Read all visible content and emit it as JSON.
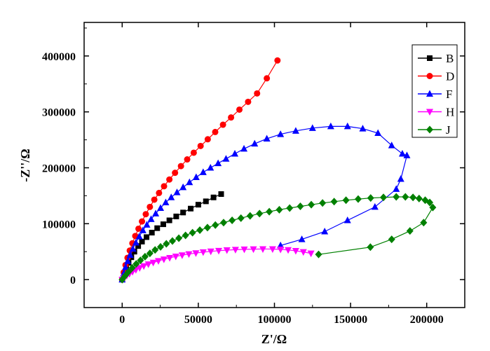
{
  "chart_data": {
    "type": "scatter",
    "title": "",
    "xlabel": "Z'/Ω",
    "ylabel": "-Z''/Ω",
    "xlim": [
      -25000,
      225000
    ],
    "ylim": [
      -50000,
      460000
    ],
    "xticks": [
      0,
      50000,
      100000,
      150000,
      200000
    ],
    "yticks": [
      0,
      100000,
      200000,
      300000,
      400000
    ],
    "xtick_labels": [
      "0",
      "50000",
      "100000",
      "150000",
      "200000"
    ],
    "ytick_labels": [
      "0",
      "100000",
      "200000",
      "300000",
      "400000"
    ],
    "grid": false,
    "legend_position": "top-right",
    "series": [
      {
        "name": "B",
        "color": "#000000",
        "marker": "square",
        "x": [
          0,
          1200,
          2600,
          4200,
          6000,
          8000,
          10500,
          13000,
          16000,
          19500,
          23000,
          27000,
          31000,
          35500,
          40000,
          45000,
          50000,
          55000,
          60000,
          65000
        ],
        "y": [
          0,
          10000,
          20000,
          30000,
          40000,
          50000,
          60000,
          68000,
          76000,
          84000,
          92000,
          99000,
          106000,
          113000,
          120000,
          127000,
          134000,
          140000,
          147000,
          153000
        ]
      },
      {
        "name": "D",
        "color": "#ff0000",
        "marker": "circle",
        "x": [
          0,
          1000,
          2200,
          3500,
          5000,
          6700,
          8600,
          10700,
          13000,
          15500,
          18200,
          21100,
          24200,
          27500,
          31000,
          34700,
          38600,
          42700,
          47000,
          51500,
          56200,
          61100,
          66200,
          71500,
          77000,
          82700,
          88600,
          95000,
          102000
        ],
        "y": [
          0,
          13000,
          26000,
          39000,
          52000,
          65000,
          78000,
          91000,
          104000,
          117000,
          130000,
          143000,
          155000,
          167000,
          179000,
          191000,
          203000,
          215000,
          227000,
          239000,
          251000,
          264000,
          277000,
          290000,
          304000,
          318000,
          333000,
          360000,
          392000
        ]
      },
      {
        "name": "F",
        "color": "#0000ff",
        "marker": "triangle-up",
        "x": [
          0,
          1000,
          2200,
          3600,
          5200,
          7000,
          9000,
          11200,
          13600,
          16200,
          19000,
          22000,
          25200,
          28600,
          32200,
          36000,
          40000,
          44200,
          48600,
          53200,
          58000,
          63000,
          68200,
          74000,
          80000,
          87000,
          95000,
          104000,
          114000,
          125000,
          137000,
          148000,
          158000,
          168000,
          177000,
          184000,
          187000,
          183000,
          180000,
          166000,
          148000,
          133000,
          118000,
          104000
        ],
        "y": [
          0,
          11000,
          22000,
          33000,
          44000,
          55000,
          66000,
          77000,
          88000,
          98000,
          108000,
          118000,
          128000,
          138000,
          147000,
          156000,
          165000,
          174000,
          183000,
          192000,
          200000,
          208000,
          216000,
          225000,
          234000,
          243000,
          252000,
          260000,
          266000,
          271000,
          274000,
          274000,
          270000,
          262000,
          240000,
          225000,
          222000,
          180000,
          162000,
          130000,
          106000,
          86000,
          72000,
          61000
        ]
      },
      {
        "name": "H",
        "color": "#ff00ff",
        "marker": "triangle-down",
        "x": [
          0,
          1500,
          3000,
          4800,
          6800,
          9000,
          11500,
          14200,
          17200,
          20400,
          23800,
          27400,
          31200,
          35200,
          39400,
          43800,
          48400,
          53200,
          58200,
          63400,
          68800,
          74400,
          80200,
          86200,
          92400,
          98800,
          104000,
          109000,
          114000,
          119000,
          124000
        ],
        "y": [
          0,
          3500,
          7000,
          10500,
          14000,
          17500,
          21000,
          24300,
          27500,
          30500,
          33500,
          36300,
          39000,
          41500,
          43700,
          45700,
          47500,
          49100,
          50500,
          51700,
          52700,
          53500,
          54100,
          54500,
          54700,
          54600,
          54000,
          53000,
          51500,
          49500,
          47000
        ]
      },
      {
        "name": "J",
        "color": "#008000",
        "marker": "diamond",
        "x": [
          0,
          2000,
          4200,
          6600,
          9200,
          12000,
          15000,
          18200,
          21600,
          25200,
          29000,
          33000,
          37200,
          41600,
          46200,
          51000,
          56000,
          61200,
          66600,
          72200,
          78000,
          84000,
          90200,
          96600,
          103200,
          110000,
          117000,
          124200,
          131600,
          139200,
          147000,
          155000,
          163200,
          171600,
          180000,
          186000,
          191000,
          195000,
          199000,
          202000,
          204000,
          198000,
          189000,
          177000,
          163000,
          129000
        ],
        "y": [
          0,
          7000,
          14000,
          21000,
          28000,
          34500,
          41000,
          47000,
          53000,
          58500,
          64000,
          69000,
          74000,
          79000,
          84000,
          88500,
          93000,
          97500,
          102000,
          106000,
          110000,
          114000,
          118000,
          121500,
          125000,
          128000,
          131000,
          134000,
          137000,
          139500,
          142000,
          144000,
          146000,
          147000,
          148000,
          148000,
          147000,
          145000,
          142000,
          138000,
          129000,
          102000,
          87000,
          72000,
          58000,
          45000
        ]
      }
    ]
  }
}
